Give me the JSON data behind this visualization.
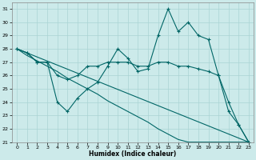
{
  "xlabel": "Humidex (Indice chaleur)",
  "xlim": [
    -0.5,
    23.5
  ],
  "ylim": [
    21,
    31.5
  ],
  "yticks": [
    21,
    22,
    23,
    24,
    25,
    26,
    27,
    28,
    29,
    30,
    31
  ],
  "xticks": [
    0,
    1,
    2,
    3,
    4,
    5,
    6,
    7,
    8,
    9,
    10,
    11,
    12,
    13,
    14,
    15,
    16,
    17,
    18,
    19,
    20,
    21,
    22,
    23
  ],
  "bg_color": "#cceaea",
  "grid_color": "#aad4d4",
  "line_color": "#006666",
  "line1_y": [
    28.0,
    27.7,
    27.0,
    27.0,
    24.0,
    23.3,
    24.3,
    25.0,
    25.5,
    26.7,
    28.0,
    27.3,
    26.3,
    26.5,
    29.0,
    31.0,
    29.3,
    30.0,
    29.0,
    28.7,
    26.0,
    24.0,
    22.3,
    21.0
  ],
  "line2_y": [
    28.0,
    27.7,
    27.0,
    27.0,
    26.0,
    25.7,
    26.0,
    26.7,
    26.7,
    27.0,
    27.0,
    27.0,
    26.7,
    26.7,
    27.0,
    27.0,
    26.7,
    26.7,
    26.5,
    26.3,
    26.0,
    23.3,
    22.3,
    21.0
  ],
  "line3_y": [
    28.0,
    27.5,
    27.1,
    26.7,
    26.3,
    25.8,
    25.4,
    25.0,
    24.6,
    24.1,
    23.7,
    23.3,
    22.9,
    22.5,
    22.0,
    21.6,
    21.2,
    21.0,
    21.0,
    21.0,
    21.0,
    21.0,
    21.0,
    21.0
  ],
  "line4_y": [
    28.0,
    21.0
  ]
}
